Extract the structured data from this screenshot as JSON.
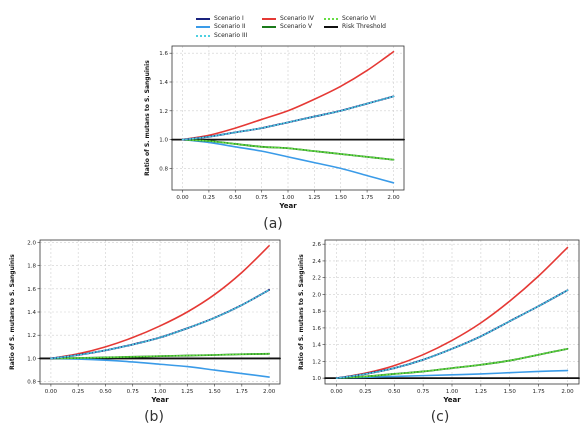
{
  "legend": {
    "entries": [
      {
        "label": "Scenario I",
        "color": "#1a237e",
        "dash": "solid"
      },
      {
        "label": "Scenario II",
        "color": "#3a9be8",
        "dash": "solid"
      },
      {
        "label": "Scenario III",
        "color": "#4dd0e1",
        "dash": "dotted"
      },
      {
        "label": "Scenario IV",
        "color": "#e53935",
        "dash": "solid"
      },
      {
        "label": "Scenario V",
        "color": "#1b7a1b",
        "dash": "solid"
      },
      {
        "label": "Scenario VI",
        "color": "#66dd44",
        "dash": "dotted"
      },
      {
        "label": "Risk Threshold",
        "color": "#111111",
        "dash": "solid"
      }
    ]
  },
  "panels": [
    {
      "letter": "(a)"
    },
    {
      "letter": "(b)"
    },
    {
      "letter": "(c)"
    }
  ],
  "chart_data": [
    {
      "type": "line",
      "panel": "(a)",
      "xlabel": "Year",
      "ylabel": "Ratio of S. mutans to S. Sanguinis",
      "xlim": [
        -0.1,
        2.1
      ],
      "ylim": [
        0.65,
        1.65
      ],
      "grid": true,
      "xticks": [
        "0.00",
        "0.25",
        "0.50",
        "0.75",
        "1.00",
        "1.25",
        "1.50",
        "1.75",
        "2.00"
      ],
      "yticks": [
        "0.8",
        "1.0",
        "1.2",
        "1.4",
        "1.6"
      ],
      "x": [
        0.0,
        0.25,
        0.5,
        0.75,
        1.0,
        1.25,
        1.5,
        1.75,
        2.0
      ],
      "series": [
        {
          "name": "Scenario IV",
          "values": [
            1.0,
            1.03,
            1.08,
            1.14,
            1.2,
            1.28,
            1.37,
            1.48,
            1.61
          ]
        },
        {
          "name": "Scenario I",
          "values": [
            1.0,
            1.02,
            1.05,
            1.08,
            1.12,
            1.16,
            1.2,
            1.25,
            1.3
          ]
        },
        {
          "name": "Scenario III",
          "values": [
            1.0,
            1.02,
            1.05,
            1.08,
            1.12,
            1.16,
            1.2,
            1.25,
            1.3
          ]
        },
        {
          "name": "Scenario V",
          "values": [
            1.0,
            0.99,
            0.97,
            0.95,
            0.94,
            0.92,
            0.9,
            0.88,
            0.86
          ]
        },
        {
          "name": "Scenario VI",
          "values": [
            1.0,
            0.99,
            0.97,
            0.95,
            0.94,
            0.92,
            0.9,
            0.88,
            0.86
          ]
        },
        {
          "name": "Scenario II",
          "values": [
            1.0,
            0.98,
            0.95,
            0.92,
            0.88,
            0.84,
            0.8,
            0.75,
            0.7
          ]
        },
        {
          "name": "Risk Threshold",
          "values": [
            1.0,
            1.0,
            1.0,
            1.0,
            1.0,
            1.0,
            1.0,
            1.0,
            1.0
          ]
        }
      ]
    },
    {
      "type": "line",
      "panel": "(b)",
      "xlabel": "Year",
      "ylabel": "Ratio of S. mutans to S. Sanguinis",
      "xlim": [
        -0.1,
        2.1
      ],
      "ylim": [
        0.78,
        2.02
      ],
      "grid": true,
      "xticks": [
        "0.00",
        "0.25",
        "0.50",
        "0.75",
        "1.00",
        "1.25",
        "1.50",
        "1.75",
        "2.00"
      ],
      "yticks": [
        "0.8",
        "1.0",
        "1.2",
        "1.4",
        "1.6",
        "1.8",
        "2.0"
      ],
      "x": [
        0.0,
        0.25,
        0.5,
        0.75,
        1.0,
        1.25,
        1.5,
        1.75,
        2.0
      ],
      "series": [
        {
          "name": "Scenario IV",
          "values": [
            1.0,
            1.04,
            1.1,
            1.18,
            1.28,
            1.4,
            1.55,
            1.74,
            1.97
          ]
        },
        {
          "name": "Scenario I",
          "values": [
            1.0,
            1.03,
            1.07,
            1.12,
            1.18,
            1.26,
            1.35,
            1.46,
            1.59
          ]
        },
        {
          "name": "Scenario III",
          "values": [
            1.0,
            1.03,
            1.07,
            1.12,
            1.18,
            1.26,
            1.35,
            1.46,
            1.59
          ]
        },
        {
          "name": "Scenario V",
          "values": [
            1.0,
            1.004,
            1.009,
            1.014,
            1.02,
            1.025,
            1.03,
            1.036,
            1.04
          ]
        },
        {
          "name": "Scenario VI",
          "values": [
            1.0,
            1.004,
            1.009,
            1.014,
            1.02,
            1.025,
            1.03,
            1.036,
            1.04
          ]
        },
        {
          "name": "Scenario II",
          "values": [
            1.0,
            0.995,
            0.985,
            0.97,
            0.95,
            0.93,
            0.9,
            0.87,
            0.84
          ]
        },
        {
          "name": "Risk Threshold",
          "values": [
            1.0,
            1.0,
            1.0,
            1.0,
            1.0,
            1.0,
            1.0,
            1.0,
            1.0
          ]
        }
      ]
    },
    {
      "type": "line",
      "panel": "(c)",
      "xlabel": "Year",
      "ylabel": "Ratio of S. mutans to S. Sanguinis",
      "xlim": [
        -0.1,
        2.1
      ],
      "ylim": [
        0.93,
        2.65
      ],
      "grid": true,
      "xticks": [
        "0.00",
        "0.25",
        "0.50",
        "0.75",
        "1.00",
        "1.25",
        "1.50",
        "1.75",
        "2.00"
      ],
      "yticks": [
        "1.0",
        "1.2",
        "1.4",
        "1.6",
        "1.8",
        "2.0",
        "2.2",
        "2.4",
        "2.6"
      ],
      "x": [
        0.0,
        0.25,
        0.5,
        0.75,
        1.0,
        1.25,
        1.5,
        1.75,
        2.0
      ],
      "series": [
        {
          "name": "Scenario IV",
          "values": [
            1.0,
            1.06,
            1.15,
            1.28,
            1.45,
            1.66,
            1.92,
            2.22,
            2.56
          ]
        },
        {
          "name": "Scenario I",
          "values": [
            1.0,
            1.05,
            1.12,
            1.22,
            1.35,
            1.5,
            1.68,
            1.86,
            2.05
          ]
        },
        {
          "name": "Scenario III",
          "values": [
            1.0,
            1.05,
            1.12,
            1.22,
            1.35,
            1.5,
            1.68,
            1.86,
            2.05
          ]
        },
        {
          "name": "Scenario V",
          "values": [
            1.0,
            1.02,
            1.05,
            1.08,
            1.12,
            1.16,
            1.21,
            1.28,
            1.35
          ]
        },
        {
          "name": "Scenario VI",
          "values": [
            1.0,
            1.02,
            1.05,
            1.08,
            1.12,
            1.16,
            1.21,
            1.28,
            1.35
          ]
        },
        {
          "name": "Scenario II",
          "values": [
            1.0,
            1.01,
            1.02,
            1.03,
            1.04,
            1.05,
            1.065,
            1.08,
            1.09
          ]
        },
        {
          "name": "Risk Threshold",
          "values": [
            1.0,
            1.0,
            1.0,
            1.0,
            1.0,
            1.0,
            1.0,
            1.0,
            1.0
          ]
        }
      ]
    }
  ]
}
